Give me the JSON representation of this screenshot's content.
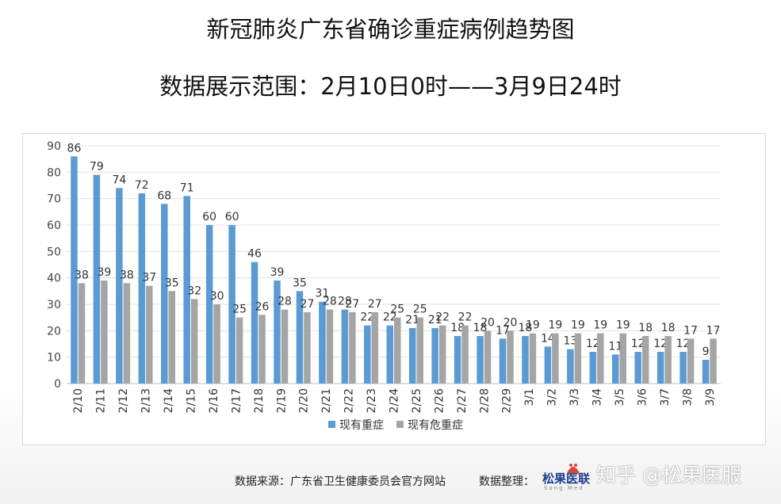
{
  "title": "新冠肺炎广东省确诊重症病例趋势图",
  "subtitle": "数据展示范围：2月10日0时——3月9日24时",
  "chart_data": {
    "type": "bar",
    "categories": [
      "2/10",
      "2/11",
      "2/12",
      "2/13",
      "2/14",
      "2/15",
      "2/16",
      "2/17",
      "2/18",
      "2/19",
      "2/20",
      "2/21",
      "2/22",
      "2/23",
      "2/24",
      "2/25",
      "2/26",
      "2/27",
      "2/28",
      "2/29",
      "3/1",
      "3/2",
      "3/3",
      "3/4",
      "3/5",
      "3/6",
      "3/7",
      "3/8",
      "3/9"
    ],
    "series": [
      {
        "name": "现有重症",
        "color": "#5b9bd5",
        "values": [
          86,
          79,
          74,
          72,
          68,
          71,
          60,
          60,
          46,
          39,
          35,
          31,
          28,
          22,
          22,
          21,
          21,
          18,
          18,
          17,
          18,
          14,
          13,
          12,
          11,
          12,
          12,
          12,
          9
        ]
      },
      {
        "name": "现有危重症",
        "color": "#a5a5a5",
        "values": [
          38,
          39,
          38,
          37,
          35,
          32,
          30,
          25,
          26,
          28,
          27,
          28,
          27,
          27,
          25,
          25,
          22,
          22,
          20,
          20,
          19,
          19,
          19,
          19,
          19,
          18,
          18,
          17,
          17
        ]
      }
    ],
    "ylim": [
      0,
      90
    ],
    "yticks": [
      0,
      10,
      20,
      30,
      40,
      50,
      60,
      70,
      80,
      90
    ],
    "xlabel": "",
    "ylabel": "",
    "grid": true,
    "legend_position": "bottom",
    "data_labels": true
  },
  "footer": {
    "source": "数据来源：广东省卫生健康委员会官方网站",
    "organizer": "数据整理：",
    "logo_text": "松果医联",
    "logo_sub": "Song Med",
    "watermark": "知乎 @松果医服"
  }
}
